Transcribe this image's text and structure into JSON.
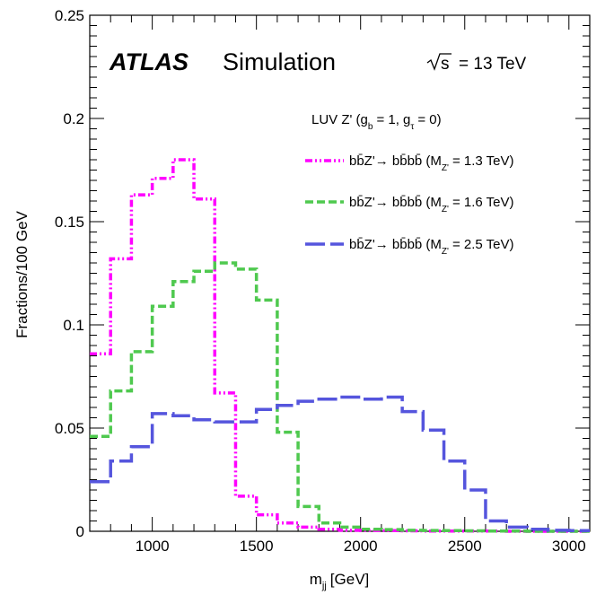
{
  "chart_data": {
    "type": "line",
    "style": "step-histogram",
    "xlabel": "m",
    "xlabel_sub": "jj",
    "xlabel_unit": "[GeV]",
    "ylabel": "Fractions/100 GeV",
    "xlim": [
      700,
      3100
    ],
    "ylim": [
      0,
      0.25
    ],
    "x_ticks": [
      1000,
      1500,
      2000,
      2500,
      3000
    ],
    "y_ticks": [
      0,
      0.05,
      0.1,
      0.15,
      0.2,
      0.25
    ],
    "y_tick_labels": [
      "0",
      "0.05",
      "0.1",
      "0.15",
      "0.2",
      "0.25"
    ],
    "grid": false,
    "legend_position": "top-right",
    "annotations": {
      "experiment": "ATLAS",
      "experiment_suffix": "Simulation",
      "energy_root": "s",
      "energy_rest": "= 13 TeV",
      "model_prefix": "LUV Z' (g",
      "model_sub1": "b",
      "model_mid": "= 1, g",
      "model_sub2": "τ",
      "model_suffix": "= 0)"
    },
    "bin_edges": [
      700,
      800,
      900,
      1000,
      1100,
      1200,
      1300,
      1400,
      1500,
      1600,
      1700,
      1800,
      1900,
      2000,
      2100,
      2200,
      2300,
      2400,
      2500,
      2600,
      2700,
      2800,
      2900,
      3000,
      3100
    ],
    "series": [
      {
        "name_prefix": "bb̄Z'→ bb̄bb̄ (M",
        "name_sub": "Z'",
        "name_suffix": "= 1.3 TeV)",
        "color": "#ff00ff",
        "dash": "8,3,2,3,2,3",
        "values": [
          0.086,
          0.132,
          0.163,
          0.171,
          0.18,
          0.161,
          0.067,
          0.017,
          0.008,
          0.004,
          0.002,
          0.001,
          0.0005,
          0.0004,
          0.0003,
          0.0002,
          0.0001,
          0.0001,
          0.0001,
          0.0001,
          0,
          0,
          0,
          0
        ]
      },
      {
        "name_prefix": "bb̄Z'→ bb̄bb̄ (M",
        "name_sub": "Z'",
        "name_suffix": "= 1.6 TeV)",
        "color": "#4fc94f",
        "dash": "9,4",
        "values": [
          0.046,
          0.068,
          0.087,
          0.109,
          0.121,
          0.126,
          0.13,
          0.127,
          0.112,
          0.048,
          0.012,
          0.004,
          0.002,
          0.001,
          0.0008,
          0.0005,
          0.0004,
          0.0003,
          0.0002,
          0.0001,
          0.0001,
          0,
          0,
          0
        ]
      },
      {
        "name_prefix": "bb̄Z'→ bb̄bb̄ (M",
        "name_sub": "Z'",
        "name_suffix": "= 2.5 TeV)",
        "color": "#5555dd",
        "dash": "22,6",
        "values": [
          0.024,
          0.034,
          0.041,
          0.057,
          0.056,
          0.054,
          0.053,
          0.053,
          0.059,
          0.061,
          0.063,
          0.064,
          0.065,
          0.064,
          0.065,
          0.058,
          0.049,
          0.034,
          0.02,
          0.005,
          0.002,
          0.001,
          0.0005,
          0.0003
        ]
      }
    ]
  }
}
